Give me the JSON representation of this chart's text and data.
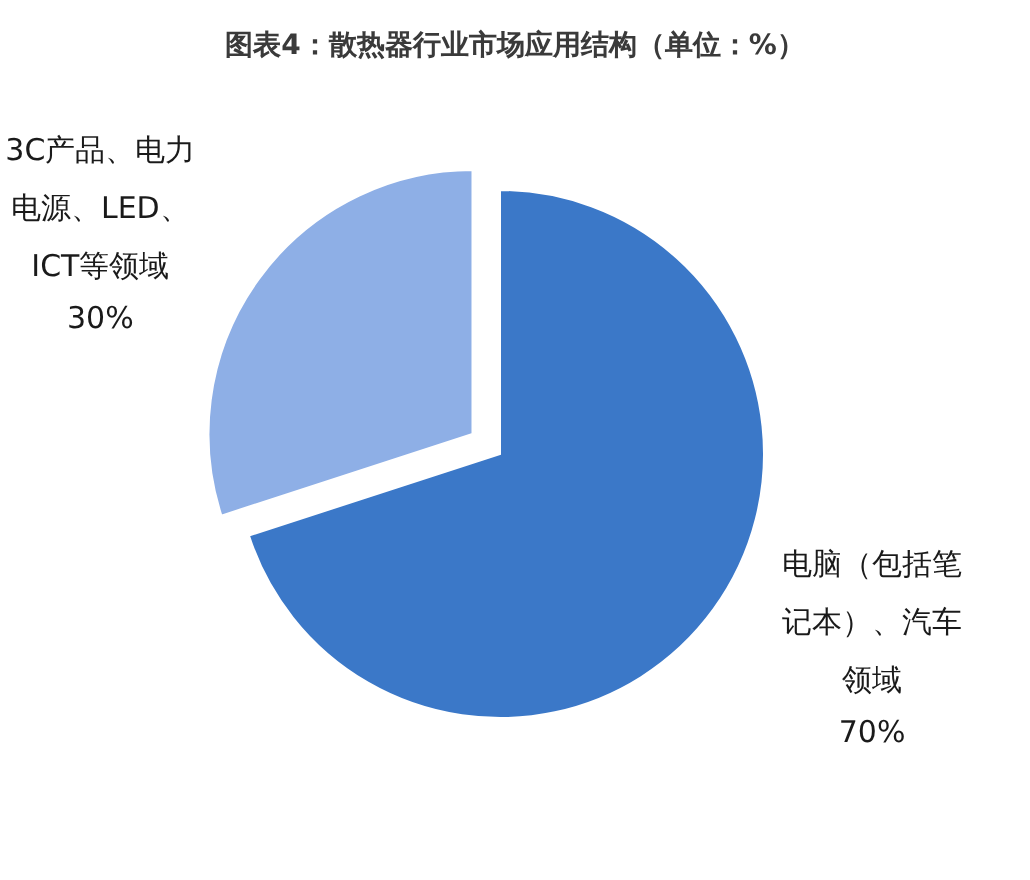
{
  "chart_data": {
    "type": "pie",
    "title": "图表4：散热器行业市场应用结构（单位：%）",
    "categories": [
      "电脑（包括笔记本）、汽车领域",
      "3C产品、电力电源、LED、ICT等领域"
    ],
    "values": [
      70,
      30
    ],
    "colors": [
      "#3b78c8",
      "#8eafe6"
    ],
    "value_labels": [
      "70%",
      "30%"
    ]
  }
}
